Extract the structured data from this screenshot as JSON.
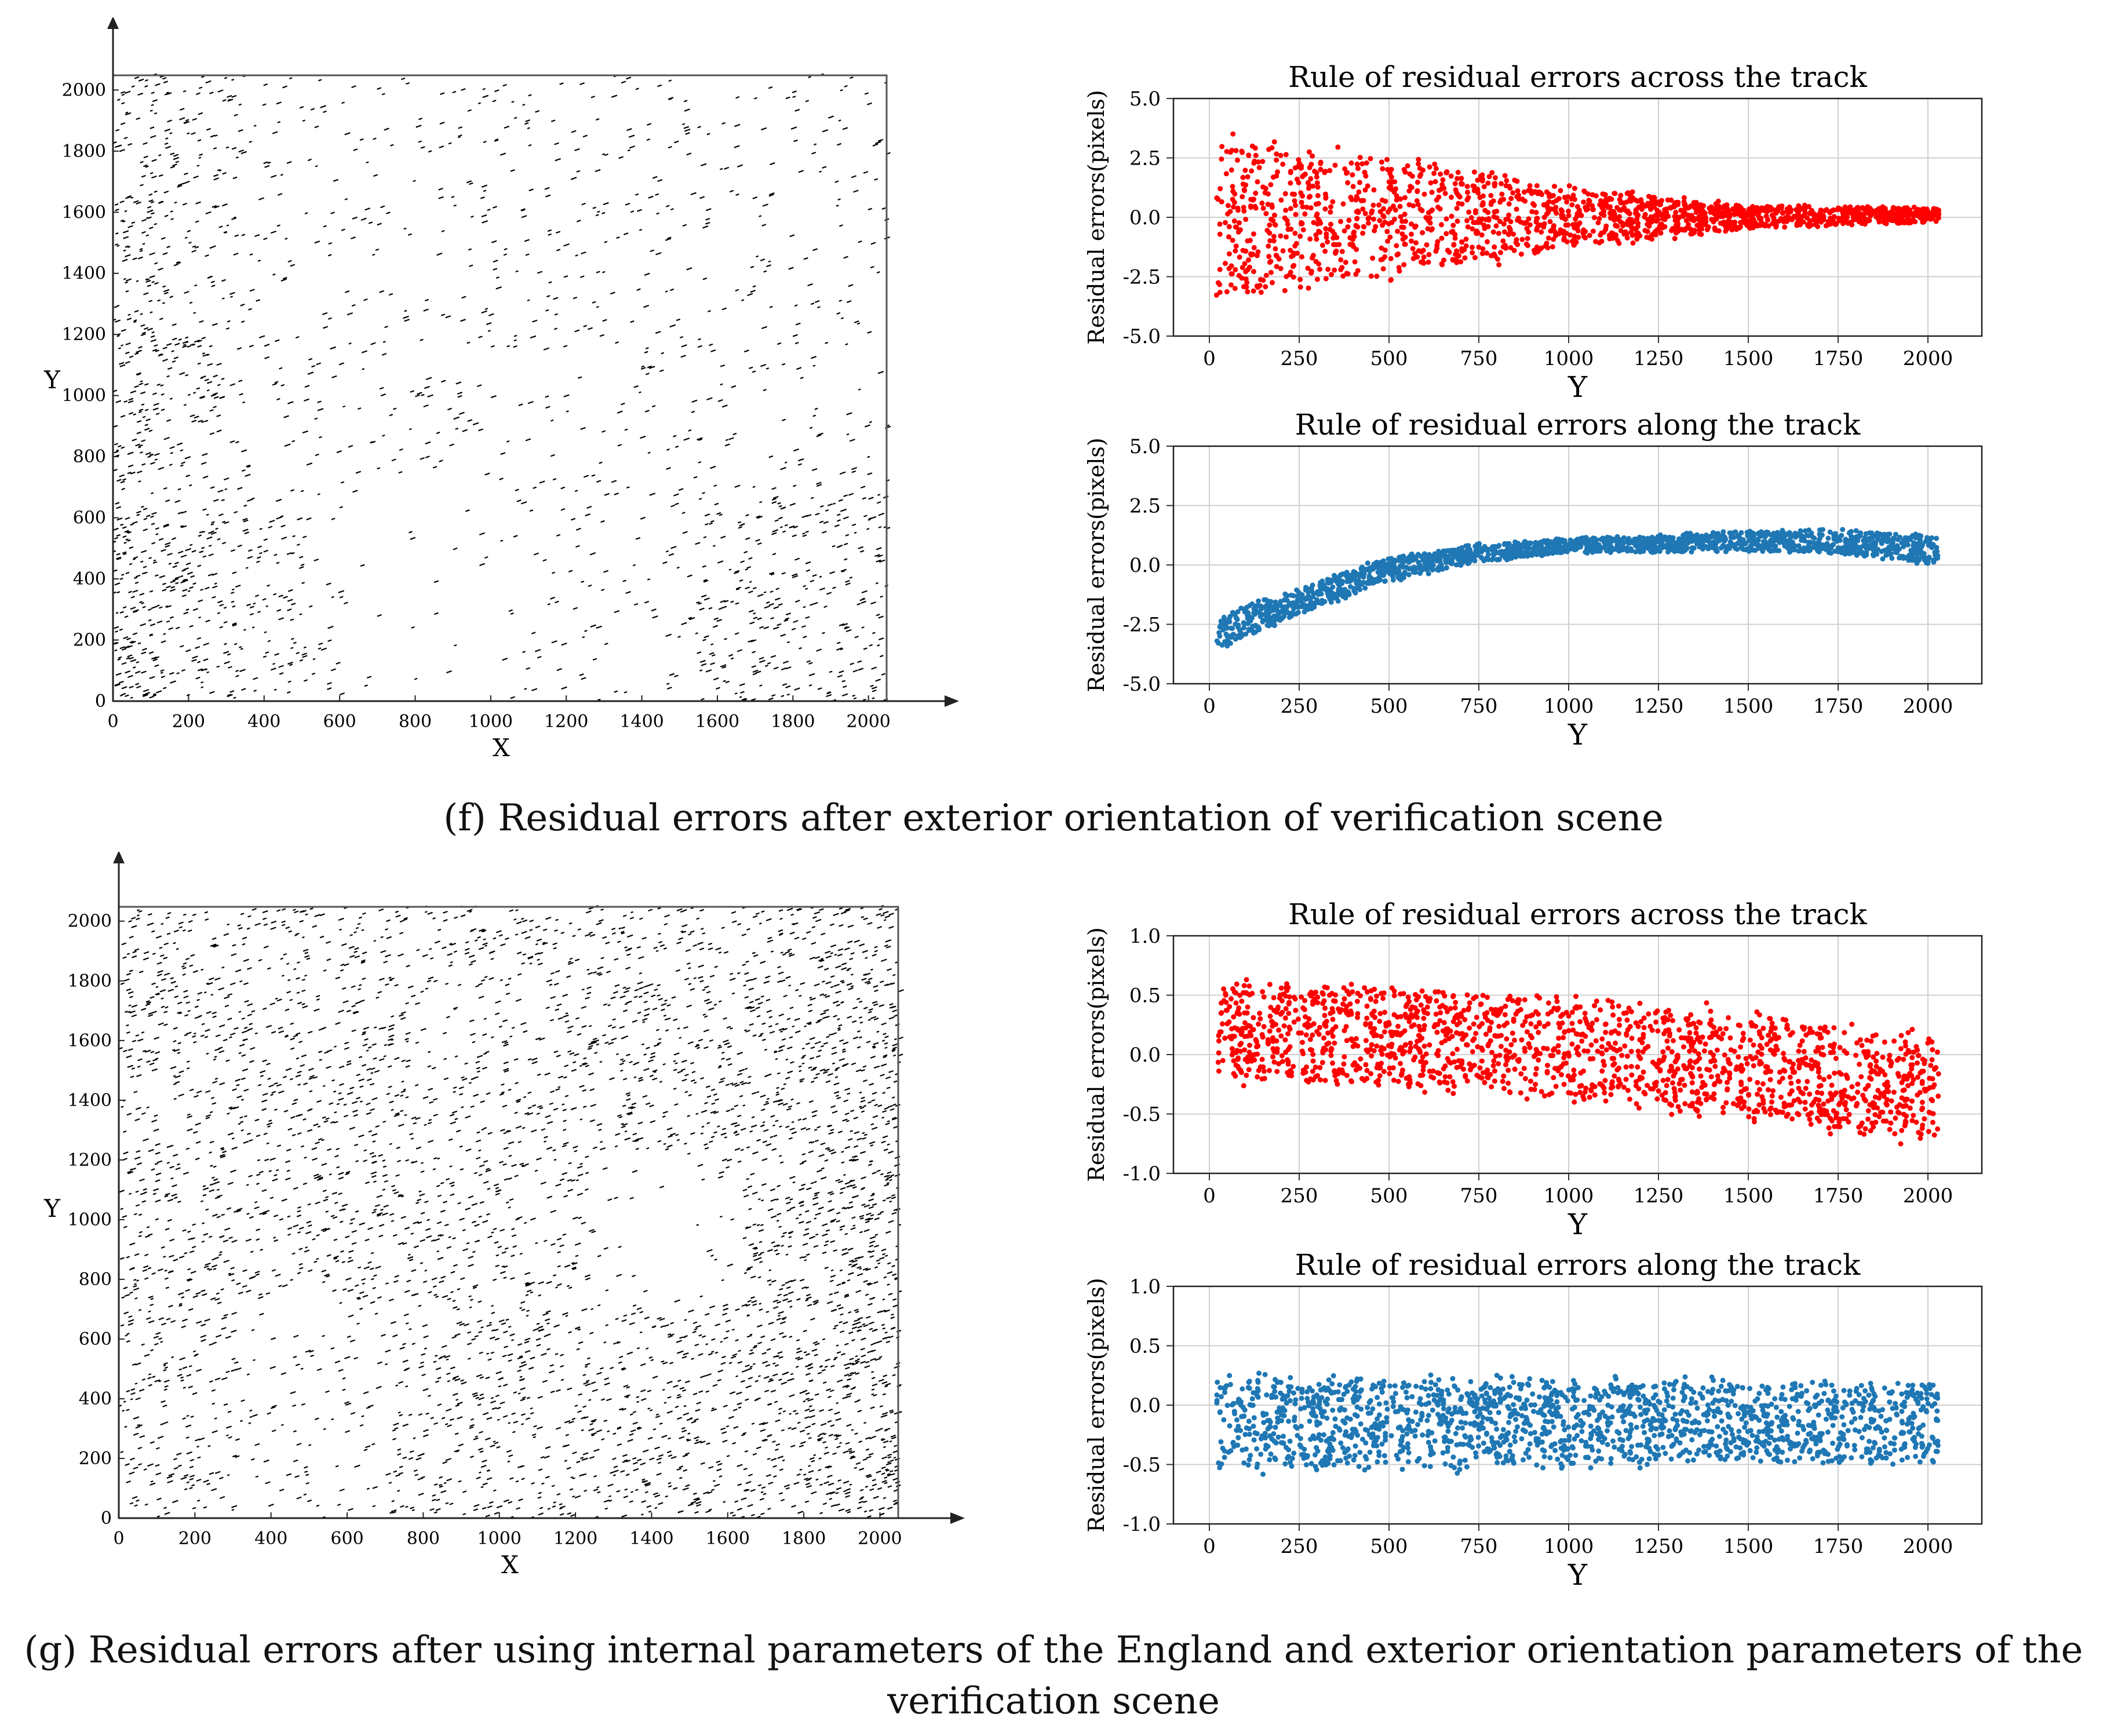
{
  "figure": {
    "caption_f": "(f) Residual errors after exterior orientation of verification scene",
    "caption_g_line1": "(g) Residual errors after using internal parameters of the England and exterior orientation parameters of the",
    "caption_g_line2": "verification scene"
  },
  "chart_data": [
    {
      "id": "f-vector-field",
      "type": "scatter",
      "title": "",
      "xlabel": "X",
      "ylabel": "Y",
      "xlim": [
        0,
        2048
      ],
      "ylim": [
        0,
        2048
      ],
      "xticks": [
        "0",
        "200",
        "400",
        "600",
        "800",
        "1000",
        "1200",
        "1400",
        "1600",
        "1800",
        "2000"
      ],
      "yticks": [
        "0",
        "200",
        "400",
        "600",
        "800",
        "1000",
        "1200",
        "1400",
        "1600",
        "1800",
        "2000"
      ],
      "color": "#000000"
    },
    {
      "id": "f-across",
      "type": "scatter",
      "title": "Rule of residual errors across the track",
      "xlabel": "Y",
      "ylabel": "Residual errors(pixels)",
      "xlim": [
        -100,
        2150
      ],
      "ylim": [
        -5.0,
        5.0
      ],
      "xticks": [
        "0",
        "250",
        "500",
        "750",
        "1000",
        "1250",
        "1500",
        "1750",
        "2000"
      ],
      "yticks": [
        "-5.0",
        "-2.5",
        "0.0",
        "2.5",
        "5.0"
      ],
      "color": "#ff0000",
      "trend": {
        "x": [
          20,
          500,
          1000,
          1500,
          2030
        ],
        "center": [
          0.0,
          0.0,
          0.0,
          0.0,
          0.1
        ],
        "spread": [
          3.3,
          2.6,
          1.3,
          0.5,
          0.3
        ]
      }
    },
    {
      "id": "f-along",
      "type": "scatter",
      "title": "Rule of residual errors along the track",
      "xlabel": "Y",
      "ylabel": "Residual errors(pixels)",
      "xlim": [
        -100,
        2150
      ],
      "ylim": [
        -5.0,
        5.0
      ],
      "xticks": [
        "0",
        "250",
        "500",
        "750",
        "1000",
        "1250",
        "1500",
        "1750",
        "2000"
      ],
      "yticks": [
        "-5.0",
        "-2.5",
        "0.0",
        "2.5",
        "5.0"
      ],
      "color": "#1f77b4",
      "trend": {
        "x": [
          20,
          250,
          500,
          750,
          1000,
          1250,
          1500,
          1750,
          2030
        ],
        "center": [
          -2.9,
          -1.5,
          -0.2,
          0.5,
          0.8,
          0.9,
          1.0,
          1.0,
          0.6
        ],
        "spread": [
          0.7,
          0.6,
          0.5,
          0.4,
          0.3,
          0.35,
          0.45,
          0.5,
          0.6
        ]
      }
    },
    {
      "id": "g-vector-field",
      "type": "scatter",
      "title": "",
      "xlabel": "X",
      "ylabel": "Y",
      "xlim": [
        0,
        2048
      ],
      "ylim": [
        0,
        2048
      ],
      "xticks": [
        "0",
        "200",
        "400",
        "600",
        "800",
        "1000",
        "1200",
        "1400",
        "1600",
        "1800",
        "2000"
      ],
      "yticks": [
        "0",
        "200",
        "400",
        "600",
        "800",
        "1000",
        "1200",
        "1400",
        "1600",
        "1800",
        "2000"
      ],
      "color": "#000000"
    },
    {
      "id": "g-across",
      "type": "scatter",
      "title": "Rule of residual errors across the track",
      "xlabel": "Y",
      "ylabel": "Residual errors(pixels)",
      "xlim": [
        -100,
        2150
      ],
      "ylim": [
        -1.0,
        1.0
      ],
      "xticks": [
        "0",
        "250",
        "500",
        "750",
        "1000",
        "1250",
        "1500",
        "1750",
        "2000"
      ],
      "yticks": [
        "-1.0",
        "-0.5",
        "0.0",
        "0.5",
        "1.0"
      ],
      "color": "#ff0000",
      "trend": {
        "x": [
          20,
          500,
          1000,
          1500,
          2030
        ],
        "center": [
          0.2,
          0.15,
          0.05,
          -0.1,
          -0.3
        ],
        "spread": [
          0.4,
          0.42,
          0.42,
          0.45,
          0.45
        ]
      }
    },
    {
      "id": "g-along",
      "type": "scatter",
      "title": "Rule of residual errors along the track",
      "xlabel": "Y",
      "ylabel": "Residual errors(pixels)",
      "xlim": [
        -100,
        2150
      ],
      "ylim": [
        -1.0,
        1.0
      ],
      "xticks": [
        "0",
        "250",
        "500",
        "750",
        "1000",
        "1250",
        "1500",
        "1750",
        "2000"
      ],
      "yticks": [
        "-1.0",
        "-0.5",
        "0.0",
        "0.5",
        "1.0"
      ],
      "color": "#1f77b4",
      "trend": {
        "x": [
          20,
          1000,
          2030
        ],
        "center": [
          -0.15,
          -0.15,
          -0.15
        ],
        "spread": [
          0.4,
          0.35,
          0.35
        ]
      }
    }
  ]
}
